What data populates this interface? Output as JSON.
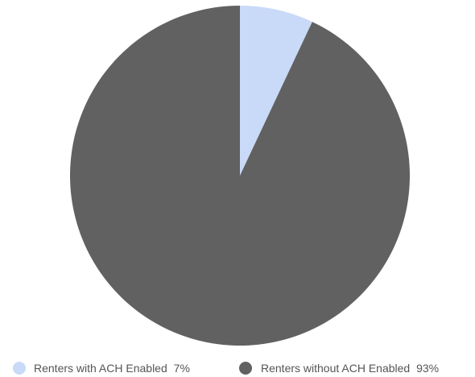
{
  "chart_data": {
    "type": "pie",
    "title": "",
    "slices": [
      {
        "label": "Renters with ACH Enabled",
        "value": 7,
        "display": "7%",
        "color": "#c9daf8"
      },
      {
        "label": "Renters without ACH Enabled",
        "value": 93,
        "display": "93%",
        "color": "#616161"
      }
    ],
    "start_angle": "12 o'clock",
    "direction": "clockwise",
    "legend_position": "bottom"
  }
}
